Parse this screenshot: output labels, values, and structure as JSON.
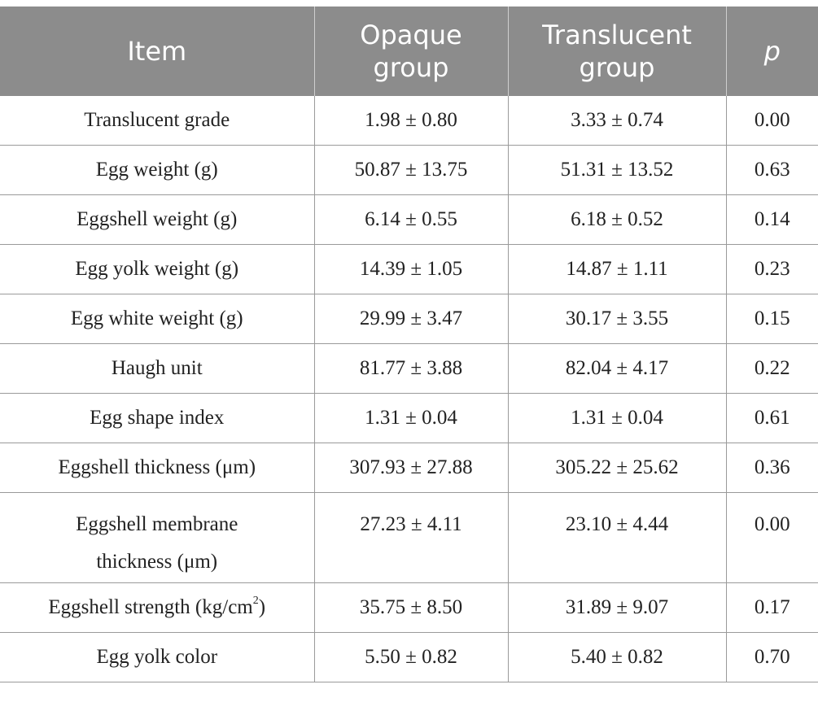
{
  "table": {
    "headers": [
      [
        "Item"
      ],
      [
        "Opaque",
        "group"
      ],
      [
        "Translucent",
        "group"
      ],
      [
        "p"
      ]
    ],
    "rows": [
      {
        "item": "Translucent grade",
        "opaque": "1.98 ± 0.80",
        "translucent": "3.33 ± 0.74",
        "p": "0.00"
      },
      {
        "item": "Egg weight (g)",
        "opaque": "50.87 ± 13.75",
        "translucent": "51.31 ± 13.52",
        "p": "0.63"
      },
      {
        "item": "Eggshell weight (g)",
        "opaque": "6.14 ± 0.55",
        "translucent": "6.18 ± 0.52",
        "p": "0.14"
      },
      {
        "item": "Egg yolk weight (g)",
        "opaque": "14.39 ± 1.05",
        "translucent": "14.87 ± 1.11",
        "p": "0.23"
      },
      {
        "item": "Egg white weight (g)",
        "opaque": "29.99 ± 3.47",
        "translucent": "30.17 ± 3.55",
        "p": "0.15"
      },
      {
        "item": "Haugh unit",
        "opaque": "81.77 ± 3.88",
        "translucent": "82.04 ± 4.17",
        "p": "0.22"
      },
      {
        "item": "Egg shape index",
        "opaque": "1.31 ± 0.04",
        "translucent": "1.31 ± 0.04",
        "p": "0.61"
      },
      {
        "item": "Eggshell thickness (μm)",
        "opaque": "307.93 ± 27.88",
        "translucent": "305.22 ± 25.62",
        "p": "0.36"
      },
      {
        "item_lines": [
          "Eggshell membrane",
          "thickness (μm)"
        ],
        "opaque": "27.23 ± 4.11",
        "translucent": "23.10 ± 4.44",
        "p": "0.00"
      },
      {
        "item_prefix": "Eggshell strength (kg/cm",
        "item_sup": "2",
        "item_suffix": ")",
        "opaque": "35.75 ± 8.50",
        "translucent": "31.89 ± 9.07",
        "p": "0.17"
      },
      {
        "item": "Egg yolk color",
        "opaque": "5.50 ± 0.82",
        "translucent": "5.40 ± 0.82",
        "p": "0.70"
      }
    ]
  }
}
